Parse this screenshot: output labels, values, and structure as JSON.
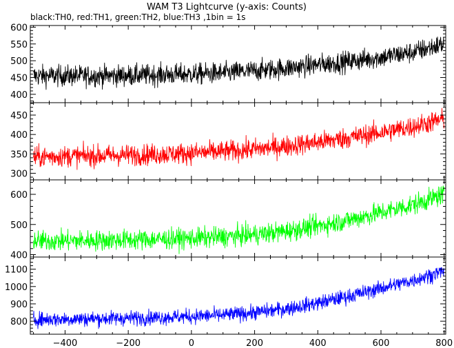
{
  "chart_data": {
    "type": "line",
    "title": "WAM T3 Lightcurve (y-axis: Counts)",
    "subtitle": "black:TH0, red:TH1, green:TH2, blue:TH3 ,1bin = 1s",
    "xlim": [
      -510,
      805
    ],
    "x_ticks": [
      -400,
      -200,
      0,
      200,
      400,
      600,
      800
    ],
    "x_tick_labels": [
      "−400",
      "−200",
      "0",
      "200",
      "400",
      "600",
      "800"
    ],
    "bin_seconds": 1,
    "grid": false,
    "series": [
      {
        "name": "TH0",
        "color": "#000000",
        "ylim": [
          375,
          605
        ],
        "y_ticks": [
          400,
          450,
          500,
          550,
          600
        ],
        "x": [
          -500,
          -400,
          -300,
          -200,
          -100,
          0,
          100,
          200,
          300,
          400,
          500,
          600,
          700,
          800
        ],
        "y": [
          455,
          455,
          455,
          456,
          458,
          460,
          463,
          470,
          478,
          488,
          498,
          510,
          525,
          550
        ],
        "noise_amplitude": 28
      },
      {
        "name": "TH1",
        "color": "#ff0000",
        "ylim": [
          283,
          482
        ],
        "y_ticks": [
          300,
          350,
          400,
          450
        ],
        "x": [
          -500,
          -400,
          -300,
          -200,
          -100,
          0,
          100,
          200,
          300,
          400,
          500,
          600,
          700,
          800
        ],
        "y": [
          342,
          344,
          345,
          347,
          349,
          352,
          356,
          362,
          370,
          380,
          392,
          405,
          420,
          440
        ],
        "noise_amplitude": 24
      },
      {
        "name": "TH2",
        "color": "#00ff00",
        "ylim": [
          392,
          648
        ],
        "y_ticks": [
          400,
          500,
          600
        ],
        "x": [
          -500,
          -400,
          -300,
          -200,
          -100,
          0,
          100,
          200,
          300,
          400,
          500,
          600,
          700,
          800
        ],
        "y": [
          445,
          446,
          447,
          449,
          451,
          454,
          459,
          466,
          478,
          495,
          515,
          540,
          565,
          600
        ],
        "noise_amplitude": 30
      },
      {
        "name": "TH3",
        "color": "#0000ff",
        "ylim": [
          725,
          1170
        ],
        "y_ticks": [
          800,
          900,
          1000,
          1100
        ],
        "x": [
          -500,
          -400,
          -300,
          -200,
          -100,
          0,
          100,
          200,
          300,
          400,
          500,
          600,
          700,
          800
        ],
        "y": [
          810,
          812,
          815,
          818,
          822,
          828,
          835,
          850,
          872,
          905,
          945,
          990,
          1035,
          1090
        ],
        "noise_amplitude": 38
      }
    ]
  }
}
